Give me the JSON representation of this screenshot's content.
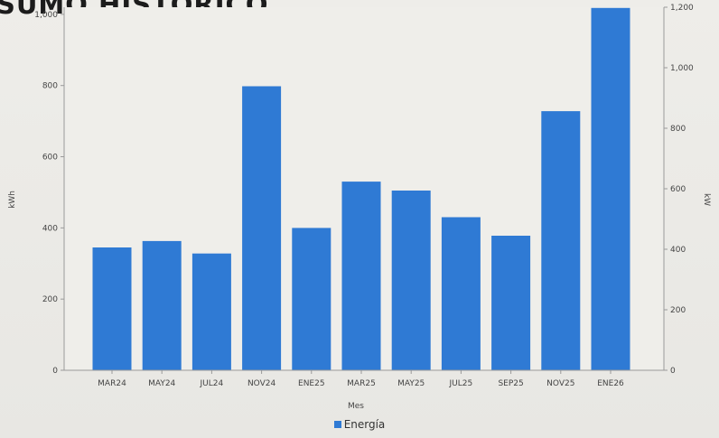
{
  "title": "SUMO HISTÓRICO",
  "chart_data": {
    "type": "bar",
    "categories": [
      "MAR24",
      "MAY24",
      "JUL24",
      "NOV24",
      "ENE25",
      "MAR25",
      "MAY25",
      "JUL25",
      "SEP25",
      "NOV25",
      "ENE26"
    ],
    "series": [
      {
        "name": "Energía",
        "values": [
          345,
          363,
          328,
          798,
          400,
          530,
          505,
          430,
          378,
          728,
          1018
        ]
      }
    ],
    "xlabel": "Mes",
    "ylabel": "kWh",
    "ylabel_right": "kW",
    "ylim": [
      0,
      1020
    ],
    "yticks": [
      "0",
      "200",
      "400",
      "600",
      "800",
      "1,000"
    ],
    "ylim_right": [
      0,
      1200
    ],
    "yticks_right": [
      "0",
      "200",
      "400",
      "600",
      "800",
      "1,000",
      "1,200"
    ],
    "grid": false,
    "legend_position": "bottom",
    "bar_color": "#2f7ad4"
  }
}
